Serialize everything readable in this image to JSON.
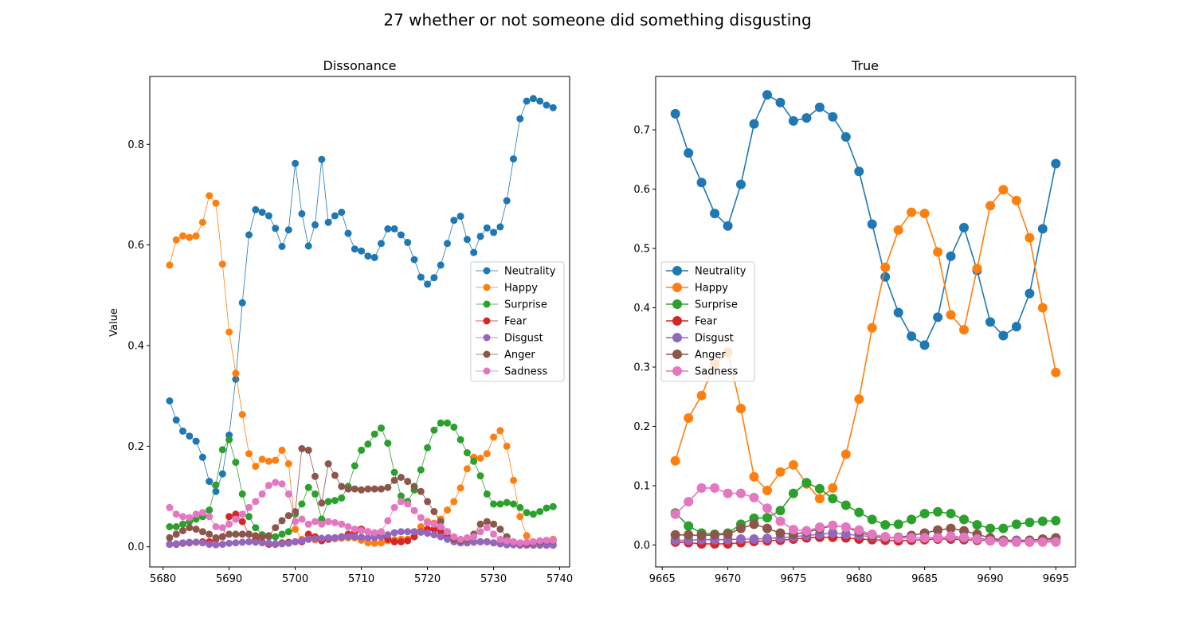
{
  "figure": {
    "title": "27 whether or not someone did something disgusting"
  },
  "chart_data": [
    {
      "type": "line",
      "title": "Dissonance",
      "ylabel": "Value",
      "xlim": [
        5678,
        5741.5
      ],
      "ylim": [
        -0.04,
        0.935
      ],
      "xticks": [
        5680,
        5690,
        5700,
        5710,
        5720,
        5730,
        5740
      ],
      "yticks": [
        0.0,
        0.2,
        0.4,
        0.6,
        0.8
      ],
      "legend": "center-right",
      "x_start": 5681,
      "series": [
        {
          "name": "Neutrality",
          "color": "#1f77b4",
          "values": [
            0.29,
            0.252,
            0.23,
            0.22,
            0.21,
            0.178,
            0.13,
            0.11,
            0.145,
            0.222,
            0.333,
            0.485,
            0.62,
            0.67,
            0.665,
            0.658,
            0.633,
            0.597,
            0.63,
            0.762,
            0.662,
            0.598,
            0.64,
            0.77,
            0.645,
            0.658,
            0.665,
            0.623,
            0.592,
            0.588,
            0.578,
            0.575,
            0.603,
            0.632,
            0.632,
            0.62,
            0.605,
            0.571,
            0.536,
            0.522,
            0.535,
            0.56,
            0.603,
            0.649,
            0.657,
            0.611,
            0.585,
            0.617,
            0.634,
            0.625,
            0.636,
            0.688,
            0.771,
            0.851,
            0.886,
            0.891,
            0.886,
            0.878,
            0.873
          ]
        },
        {
          "name": "Happy",
          "color": "#ff7f0e",
          "values": [
            0.56,
            0.61,
            0.618,
            0.615,
            0.618,
            0.645,
            0.698,
            0.683,
            0.562,
            0.427,
            0.345,
            0.263,
            0.185,
            0.16,
            0.174,
            0.17,
            0.172,
            0.192,
            0.165,
            0.035,
            0.015,
            0.015,
            0.014,
            0.015,
            0.018,
            0.016,
            0.017,
            0.018,
            0.018,
            0.013,
            0.008,
            0.007,
            0.008,
            0.012,
            0.014,
            0.015,
            0.015,
            0.03,
            0.04,
            0.05,
            0.047,
            0.055,
            0.073,
            0.09,
            0.117,
            0.155,
            0.178,
            0.176,
            0.185,
            0.218,
            0.231,
            0.2,
            0.132,
            0.06,
            0.022,
            0.01,
            0.009,
            0.01,
            0.015
          ]
        },
        {
          "name": "Surprise",
          "color": "#2ca02c",
          "values": [
            0.04,
            0.04,
            0.045,
            0.05,
            0.055,
            0.06,
            0.073,
            0.123,
            0.193,
            0.213,
            0.168,
            0.105,
            0.06,
            0.038,
            0.024,
            0.02,
            0.02,
            0.025,
            0.03,
            0.065,
            0.085,
            0.118,
            0.105,
            0.055,
            0.09,
            0.092,
            0.097,
            0.12,
            0.161,
            0.192,
            0.204,
            0.224,
            0.236,
            0.206,
            0.148,
            0.101,
            0.09,
            0.113,
            0.153,
            0.197,
            0.232,
            0.246,
            0.246,
            0.238,
            0.213,
            0.187,
            0.17,
            0.141,
            0.105,
            0.085,
            0.085,
            0.088,
            0.085,
            0.078,
            0.068,
            0.065,
            0.07,
            0.077,
            0.08
          ]
        },
        {
          "name": "Fear",
          "color": "#d62728",
          "values": [
            0.005,
            0.005,
            0.007,
            0.008,
            0.009,
            0.01,
            0.01,
            0.015,
            0.02,
            0.06,
            0.065,
            0.05,
            0.025,
            0.015,
            0.01,
            0.005,
            0.005,
            0.008,
            0.009,
            0.01,
            0.01,
            0.025,
            0.02,
            0.012,
            0.015,
            0.018,
            0.02,
            0.025,
            0.03,
            0.035,
            0.03,
            0.025,
            0.02,
            0.015,
            0.01,
            0.01,
            0.012,
            0.02,
            0.03,
            0.035,
            0.035,
            0.03,
            0.02,
            0.012,
            0.008,
            0.008,
            0.01,
            0.01,
            0.01,
            0.008,
            0.006,
            0.005,
            0.005,
            0.005,
            0.004,
            0.004,
            0.004,
            0.004,
            0.004
          ]
        },
        {
          "name": "Disgust",
          "color": "#9467bd",
          "values": [
            0.005,
            0.006,
            0.008,
            0.009,
            0.009,
            0.008,
            0.005,
            0.004,
            0.005,
            0.007,
            0.008,
            0.009,
            0.01,
            0.009,
            0.008,
            0.007,
            0.006,
            0.006,
            0.007,
            0.01,
            0.012,
            0.015,
            0.016,
            0.017,
            0.018,
            0.018,
            0.019,
            0.02,
            0.02,
            0.019,
            0.018,
            0.018,
            0.02,
            0.024,
            0.028,
            0.03,
            0.03,
            0.03,
            0.029,
            0.027,
            0.024,
            0.02,
            0.015,
            0.01,
            0.008,
            0.008,
            0.009,
            0.01,
            0.01,
            0.008,
            0.006,
            0.004,
            0.004,
            0.003,
            0.003,
            0.003,
            0.003,
            0.003,
            0.003
          ]
        },
        {
          "name": "Anger",
          "color": "#8c564b",
          "values": [
            0.018,
            0.025,
            0.032,
            0.038,
            0.035,
            0.03,
            0.025,
            0.018,
            0.02,
            0.025,
            0.025,
            0.025,
            0.025,
            0.022,
            0.02,
            0.022,
            0.038,
            0.052,
            0.062,
            0.07,
            0.195,
            0.192,
            0.14,
            0.087,
            0.165,
            0.142,
            0.12,
            0.115,
            0.115,
            0.113,
            0.115,
            0.115,
            0.115,
            0.118,
            0.132,
            0.138,
            0.13,
            0.12,
            0.11,
            0.09,
            0.07,
            0.05,
            0.03,
            0.015,
            0.012,
            0.015,
            0.025,
            0.045,
            0.05,
            0.045,
            0.035,
            0.02,
            0.01,
            0.007,
            0.007,
            0.008,
            0.01,
            0.012,
            0.012
          ]
        },
        {
          "name": "Sadness",
          "color": "#e377c2",
          "values": [
            0.078,
            0.065,
            0.06,
            0.058,
            0.065,
            0.068,
            0.06,
            0.04,
            0.038,
            0.045,
            0.055,
            0.065,
            0.078,
            0.09,
            0.105,
            0.122,
            0.128,
            0.125,
            0.105,
            0.05,
            0.055,
            0.045,
            0.05,
            0.045,
            0.05,
            0.048,
            0.045,
            0.04,
            0.035,
            0.032,
            0.03,
            0.028,
            0.03,
            0.052,
            0.078,
            0.09,
            0.085,
            0.072,
            0.058,
            0.048,
            0.045,
            0.04,
            0.03,
            0.02,
            0.015,
            0.018,
            0.02,
            0.03,
            0.038,
            0.025,
            0.015,
            0.012,
            0.01,
            0.008,
            0.009,
            0.01,
            0.012,
            0.013,
            0.013
          ]
        }
      ]
    },
    {
      "type": "line",
      "title": "True",
      "xlim": [
        9664.5,
        9696.5
      ],
      "ylim": [
        -0.037,
        0.79
      ],
      "xticks": [
        9665,
        9670,
        9675,
        9680,
        9685,
        9690,
        9695
      ],
      "yticks": [
        0.0,
        0.1,
        0.2,
        0.3,
        0.4,
        0.5,
        0.6,
        0.7
      ],
      "legend": "center-left",
      "x_start": 9666,
      "series": [
        {
          "name": "Neutrality",
          "color": "#1f77b4",
          "values": [
            0.727,
            0.661,
            0.611,
            0.559,
            0.538,
            0.608,
            0.71,
            0.759,
            0.746,
            0.715,
            0.72,
            0.738,
            0.722,
            0.688,
            0.63,
            0.541,
            0.452,
            0.392,
            0.352,
            0.337,
            0.384,
            0.487,
            0.535,
            0.463,
            0.376,
            0.353,
            0.368,
            0.424,
            0.533,
            0.643
          ]
        },
        {
          "name": "Happy",
          "color": "#ff7f0e",
          "values": [
            0.142,
            0.214,
            0.252,
            0.305,
            0.325,
            0.23,
            0.115,
            0.092,
            0.123,
            0.135,
            0.103,
            0.078,
            0.096,
            0.153,
            0.246,
            0.366,
            0.468,
            0.531,
            0.561,
            0.559,
            0.494,
            0.388,
            0.363,
            0.466,
            0.572,
            0.599,
            0.581,
            0.518,
            0.4,
            0.291
          ]
        },
        {
          "name": "Surprise",
          "color": "#2ca02c",
          "values": [
            0.054,
            0.032,
            0.02,
            0.018,
            0.02,
            0.035,
            0.045,
            0.046,
            0.058,
            0.087,
            0.105,
            0.095,
            0.078,
            0.067,
            0.055,
            0.043,
            0.034,
            0.035,
            0.043,
            0.053,
            0.056,
            0.053,
            0.043,
            0.034,
            0.028,
            0.028,
            0.035,
            0.038,
            0.04,
            0.041
          ]
        },
        {
          "name": "Fear",
          "color": "#d62728",
          "values": [
            0.005,
            0.004,
            0.002,
            0.002,
            0.002,
            0.004,
            0.006,
            0.007,
            0.008,
            0.01,
            0.012,
            0.013,
            0.013,
            0.012,
            0.01,
            0.009,
            0.008,
            0.007,
            0.008,
            0.009,
            0.01,
            0.01,
            0.009,
            0.008,
            0.007,
            0.005,
            0.005,
            0.005,
            0.006,
            0.006
          ]
        },
        {
          "name": "Disgust",
          "color": "#9467bd",
          "values": [
            0.008,
            0.008,
            0.009,
            0.009,
            0.009,
            0.01,
            0.01,
            0.011,
            0.012,
            0.014,
            0.016,
            0.018,
            0.02,
            0.018,
            0.016,
            0.014,
            0.012,
            0.012,
            0.012,
            0.012,
            0.013,
            0.013,
            0.012,
            0.011,
            0.009,
            0.008,
            0.008,
            0.008,
            0.009,
            0.009
          ]
        },
        {
          "name": "Anger",
          "color": "#8c564b",
          "values": [
            0.017,
            0.017,
            0.016,
            0.017,
            0.018,
            0.028,
            0.035,
            0.028,
            0.02,
            0.018,
            0.022,
            0.027,
            0.033,
            0.03,
            0.022,
            0.015,
            0.012,
            0.013,
            0.016,
            0.02,
            0.025,
            0.028,
            0.024,
            0.018,
            0.012,
            0.008,
            0.006,
            0.008,
            0.01,
            0.012
          ]
        },
        {
          "name": "Sadness",
          "color": "#e377c2",
          "values": [
            0.052,
            0.073,
            0.096,
            0.096,
            0.087,
            0.087,
            0.08,
            0.062,
            0.04,
            0.026,
            0.024,
            0.03,
            0.033,
            0.03,
            0.025,
            0.018,
            0.014,
            0.012,
            0.012,
            0.012,
            0.012,
            0.015,
            0.013,
            0.01,
            0.007,
            0.005,
            0.005,
            0.005,
            0.005,
            0.005
          ]
        }
      ]
    }
  ]
}
